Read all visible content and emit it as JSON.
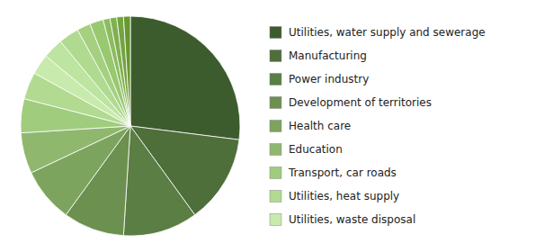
{
  "chart_data": {
    "type": "pie",
    "categories": [
      "Utilities, water supply and sewerage",
      "Manufacturing",
      "Power industry",
      "Development of territories",
      "Health care",
      "Education",
      "Transport, car roads",
      "Utilities, heat supply",
      "Utilities, waste disposal",
      null,
      null,
      null,
      null,
      null,
      null,
      null,
      null
    ],
    "values": [
      27,
      13,
      11,
      9,
      8,
      6,
      5,
      4,
      3,
      3,
      3,
      2,
      2,
      1,
      1,
      1,
      1
    ],
    "colors": [
      "#3d5c2e",
      "#4e6e3a",
      "#5a7e44",
      "#6b9050",
      "#7da45e",
      "#8fb86e",
      "#a0cc7e",
      "#b2da90",
      "#c8eaac",
      "#bde4a0",
      "#b0da90",
      "#a4d080",
      "#98c870",
      "#8cbc60",
      "#80b050",
      "#74a440",
      "#689830"
    ],
    "legend": "right"
  }
}
